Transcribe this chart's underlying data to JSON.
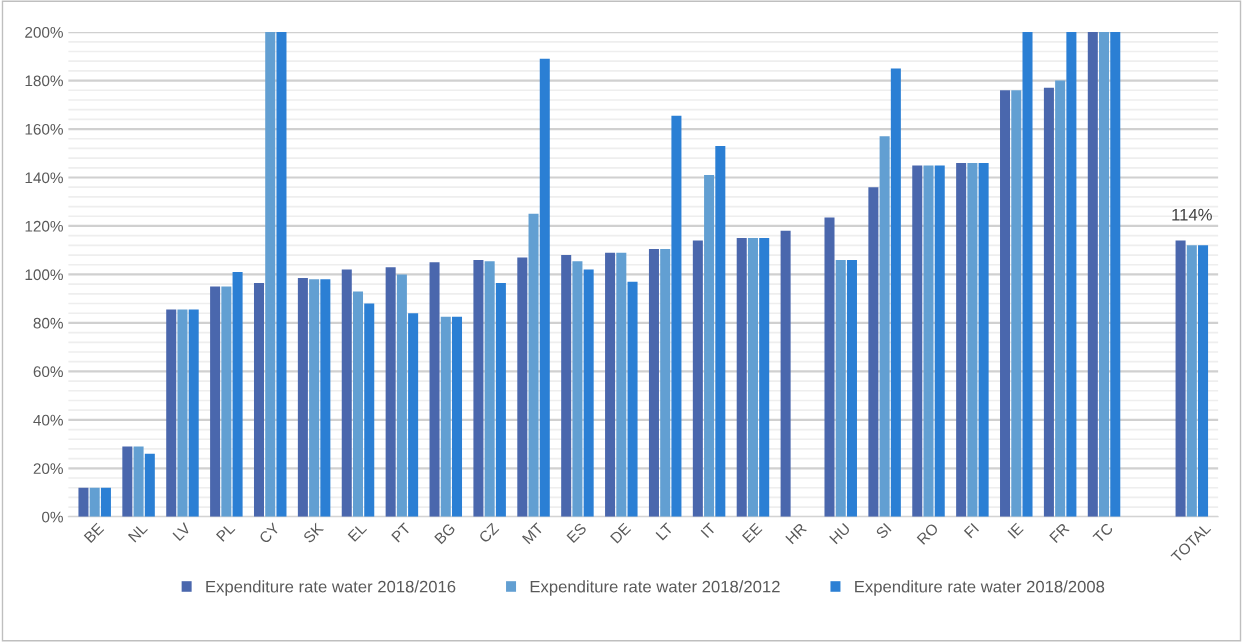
{
  "chart_data": {
    "type": "bar",
    "categories": [
      "BE",
      "NL",
      "LV",
      "PL",
      "CY",
      "SK",
      "EL",
      "PT",
      "BG",
      "CZ",
      "MT",
      "ES",
      "DE",
      "LT",
      "IT",
      "EE",
      "HR",
      "HU",
      "SI",
      "RO",
      "FI",
      "IE",
      "FR",
      "TC",
      null,
      "TOTAL"
    ],
    "series": [
      {
        "name": "Expenditure rate water 2018/2016",
        "color": "#4a67ad",
        "values": [
          12,
          29,
          85.5,
          95,
          96.5,
          98.5,
          102,
          103,
          105,
          106,
          107,
          108,
          109,
          110.5,
          114,
          115,
          118,
          123.5,
          136,
          145,
          146,
          176,
          177,
          200,
          null,
          114
        ]
      },
      {
        "name": "Expenditure rate water 2018/2012",
        "color": "#629fd2",
        "values": [
          12,
          29,
          85.5,
          95,
          200,
          98,
          93,
          100,
          82.5,
          105.5,
          125,
          105.5,
          109,
          110.5,
          141,
          115,
          null,
          106,
          157,
          145,
          146,
          176,
          180,
          200,
          null,
          112
        ]
      },
      {
        "name": "Expenditure rate water 2018/2008",
        "color": "#2b7fd4",
        "values": [
          12,
          26,
          85.5,
          101,
          200,
          98,
          88,
          84,
          82.5,
          96.5,
          189,
          102,
          97,
          165.5,
          153,
          115,
          null,
          106,
          185,
          145,
          146,
          200,
          200,
          200,
          null,
          112
        ]
      }
    ],
    "ylim": [
      0,
      200
    ],
    "yticks": [
      {
        "value": 0,
        "label": "0%"
      },
      {
        "value": 4,
        "label": null
      },
      {
        "value": 8,
        "label": null
      },
      {
        "value": 12,
        "label": null
      },
      {
        "value": 16,
        "label": null
      },
      {
        "value": 20,
        "label": "20%"
      },
      {
        "value": 24,
        "label": null
      },
      {
        "value": 28,
        "label": null
      },
      {
        "value": 32,
        "label": null
      },
      {
        "value": 36,
        "label": null
      },
      {
        "value": 40,
        "label": "40%"
      },
      {
        "value": 44,
        "label": null
      },
      {
        "value": 48,
        "label": null
      },
      {
        "value": 52,
        "label": null
      },
      {
        "value": 56,
        "label": null
      },
      {
        "value": 60,
        "label": "60%"
      },
      {
        "value": 64,
        "label": null
      },
      {
        "value": 68,
        "label": null
      },
      {
        "value": 72,
        "label": null
      },
      {
        "value": 76,
        "label": null
      },
      {
        "value": 80,
        "label": "80%"
      },
      {
        "value": 84,
        "label": null
      },
      {
        "value": 88,
        "label": null
      },
      {
        "value": 92,
        "label": null
      },
      {
        "value": 96,
        "label": null
      },
      {
        "value": 100,
        "label": "100%"
      },
      {
        "value": 104,
        "label": null
      },
      {
        "value": 108,
        "label": null
      },
      {
        "value": 112,
        "label": null
      },
      {
        "value": 116,
        "label": null
      },
      {
        "value": 120,
        "label": "120%"
      },
      {
        "value": 124,
        "label": null
      },
      {
        "value": 128,
        "label": null
      },
      {
        "value": 132,
        "label": null
      },
      {
        "value": 136,
        "label": null
      },
      {
        "value": 140,
        "label": "140%"
      },
      {
        "value": 144,
        "label": null
      },
      {
        "value": 148,
        "label": null
      },
      {
        "value": 152,
        "label": null
      },
      {
        "value": 156,
        "label": null
      },
      {
        "value": 160,
        "label": "160%"
      },
      {
        "value": 164,
        "label": null
      },
      {
        "value": 168,
        "label": null
      },
      {
        "value": 172,
        "label": null
      },
      {
        "value": 176,
        "label": null
      },
      {
        "value": 180,
        "label": "180%"
      },
      {
        "value": 184,
        "label": null
      },
      {
        "value": 188,
        "label": null
      },
      {
        "value": 192,
        "label": null
      },
      {
        "value": 196,
        "label": null
      },
      {
        "value": 200,
        "label": "200%"
      }
    ],
    "annotations": [
      {
        "text": "114%",
        "x": "TOTAL",
        "y": 114
      }
    ],
    "grid": "y",
    "legend": "bottom"
  }
}
